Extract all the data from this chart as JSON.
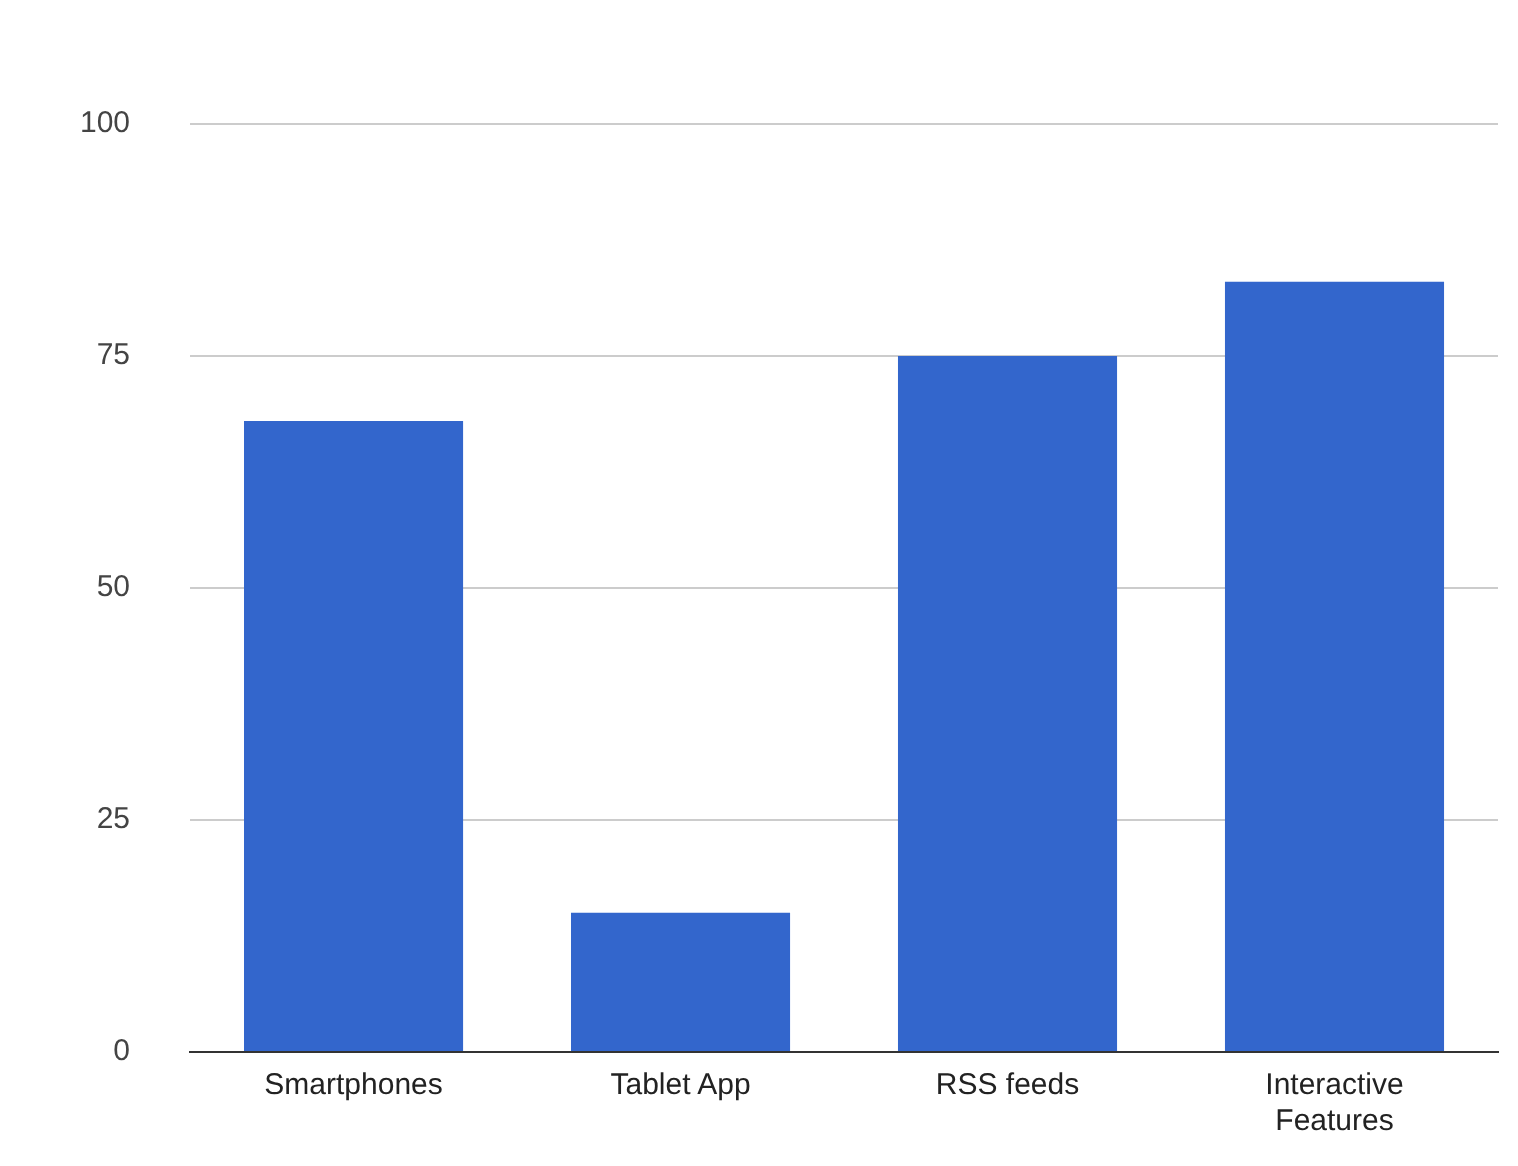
{
  "chart_data": {
    "type": "bar",
    "categories": [
      "Smartphones",
      "Tablet App",
      "RSS feeds",
      "Interactive Features"
    ],
    "values": [
      68,
      15,
      75,
      83
    ],
    "color": "#3366cc",
    "ylim": [
      0,
      100
    ],
    "yticks": [
      0,
      25,
      50,
      75,
      100
    ],
    "grid": "y"
  }
}
